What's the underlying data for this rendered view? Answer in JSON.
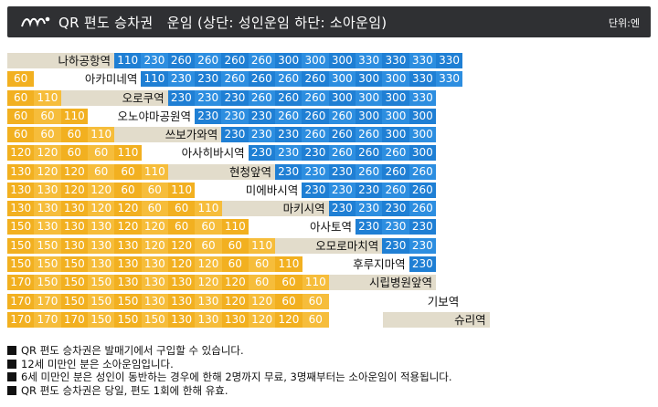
{
  "header": {
    "title": "QR 편도 승차권　운임 (상단: 성인운임 하단: 소아운임)",
    "unit": "단위:엔"
  },
  "chart_data": {
    "type": "table",
    "stations": [
      "나하공항역",
      "아카미네역",
      "오로쿠역",
      "오노야마공원역",
      "쓰보가와역",
      "아사히바시역",
      "현청앞역",
      "미에바시역",
      "마키시역",
      "아사토역",
      "오모로마치역",
      "후루지마역",
      "시립병원앞역",
      "기보역",
      "슈리역"
    ],
    "rows": [
      [
        110,
        230,
        260,
        260,
        260,
        260,
        300,
        300,
        300,
        330,
        330,
        330,
        330
      ],
      [
        60,
        110,
        230,
        230,
        260,
        260,
        260,
        260,
        300,
        300,
        300,
        330,
        330
      ],
      [
        60,
        110,
        230,
        230,
        230,
        260,
        260,
        260,
        300,
        300,
        300,
        330
      ],
      [
        60,
        60,
        110,
        230,
        230,
        230,
        260,
        260,
        260,
        300,
        300,
        300
      ],
      [
        60,
        60,
        60,
        110,
        230,
        230,
        230,
        260,
        260,
        260,
        300,
        300
      ],
      [
        120,
        120,
        60,
        60,
        110,
        230,
        230,
        230,
        260,
        260,
        260,
        300
      ],
      [
        130,
        120,
        120,
        60,
        60,
        110,
        230,
        230,
        230,
        260,
        260,
        260
      ],
      [
        130,
        130,
        120,
        120,
        60,
        60,
        110,
        230,
        230,
        230,
        260,
        260
      ],
      [
        130,
        130,
        130,
        120,
        120,
        60,
        60,
        110,
        230,
        230,
        230,
        260
      ],
      [
        150,
        130,
        130,
        130,
        120,
        120,
        60,
        60,
        110,
        230,
        230,
        230
      ],
      [
        150,
        150,
        130,
        130,
        130,
        120,
        120,
        60,
        60,
        110,
        230,
        230
      ],
      [
        150,
        150,
        150,
        130,
        130,
        130,
        120,
        120,
        60,
        60,
        110,
        230
      ],
      [
        170,
        150,
        150,
        150,
        130,
        130,
        130,
        120,
        120,
        60,
        60,
        110
      ],
      [
        170,
        170,
        150,
        150,
        150,
        130,
        130,
        130,
        120,
        120,
        60,
        60
      ],
      [
        170,
        170,
        170,
        150,
        150,
        150,
        130,
        130,
        130,
        120,
        120,
        60
      ]
    ]
  },
  "notes": [
    "QR 편도 승차권은 발매기에서 구입할 수 있습니다.",
    "12세 미만인 분은 소아운임입니다.",
    "6세 미만인 분은 성인이 동반하는 경우에 한해 2명까지 무료, 3명째부터는 소아운임이 적용됩니다.",
    "QR 편도 승차권은 당일, 편도 1회에 한해 유효."
  ]
}
